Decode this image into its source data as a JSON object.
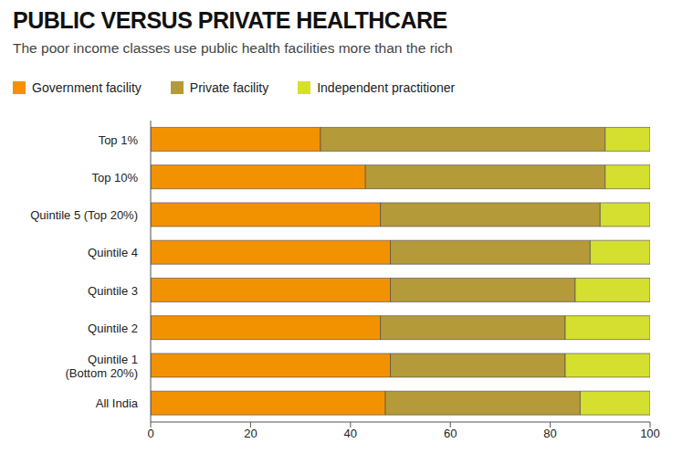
{
  "chart_data": {
    "type": "bar",
    "title": "PUBLIC VERSUS PRIVATE HEALTHCARE",
    "subtitle": "The poor income classes use public health facilities more than the rich",
    "orientation": "horizontal",
    "stacked": true,
    "legend": "top-left",
    "grid": false,
    "categories": [
      "Top 1%",
      "Top 10%",
      "Quintile 5 (Top 20%)",
      "Quintile 4",
      "Quintile 3",
      "Quintile 2",
      "Quintile 1 (Bottom 20%)",
      "All India"
    ],
    "series": [
      {
        "name": "Government facility",
        "color": "#f39200",
        "values": [
          34,
          43,
          46,
          48,
          48,
          46,
          48,
          47
        ]
      },
      {
        "name": "Private facility",
        "color": "#b59a3a",
        "values": [
          57,
          48,
          44,
          40,
          37,
          37,
          35,
          39
        ]
      },
      {
        "name": "Independent practitioner",
        "color": "#d5df2f",
        "values": [
          9,
          9,
          10,
          12,
          15,
          17,
          17,
          14
        ]
      }
    ],
    "xlim": [
      0,
      100
    ],
    "xticks": [
      0,
      20,
      40,
      60,
      80,
      100
    ]
  }
}
